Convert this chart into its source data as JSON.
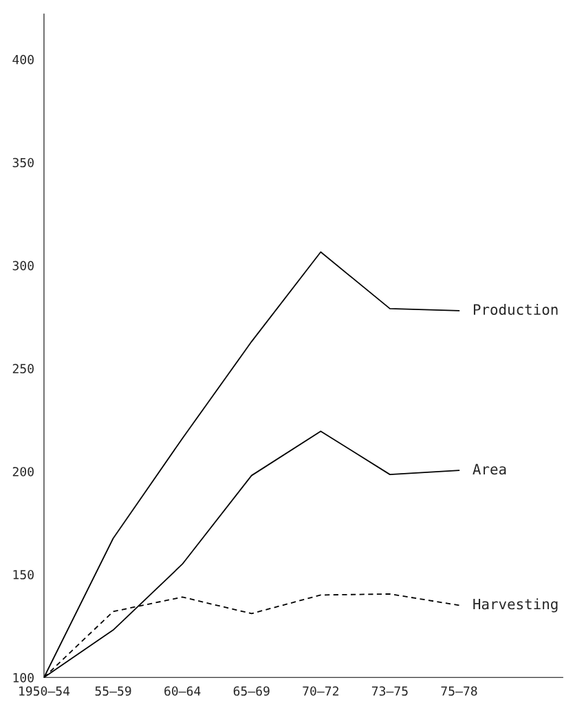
{
  "chart_data": {
    "type": "line",
    "categories": [
      "1950–54",
      "55–59",
      "60–64",
      "65–69",
      "70–72",
      "73–75",
      "75–78",
      null
    ],
    "ylim": [
      100,
      422
    ],
    "yticks": [
      100,
      150,
      200,
      250,
      300,
      350,
      400
    ],
    "grid": false,
    "legend": false,
    "marker": "none",
    "series": [
      {
        "name": "Production",
        "color": "#000000",
        "line_style": "solid",
        "values": [
          100,
          167.5,
          216,
          263,
          306.5,
          279,
          278,
          null
        ]
      },
      {
        "name": "Area",
        "color": "#000000",
        "line_style": "solid",
        "values": [
          100,
          123,
          155,
          198,
          219.5,
          198.5,
          200.5,
          null
        ]
      },
      {
        "name": "Harvesting",
        "color": "#000000",
        "line_style": "dashed",
        "values": [
          100,
          132,
          139,
          131,
          140,
          140.5,
          135,
          null
        ]
      }
    ]
  }
}
